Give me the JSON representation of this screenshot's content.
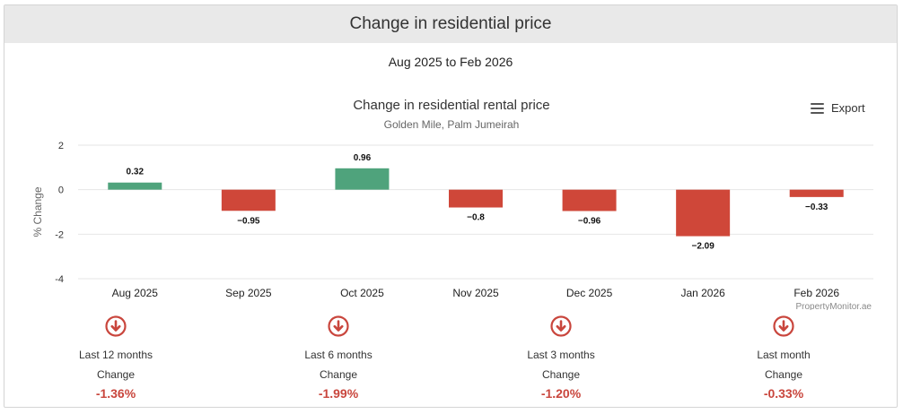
{
  "header": {
    "title": "Change in residential price"
  },
  "date_range": "Aug 2025 to Feb 2026",
  "export_label": "Export",
  "watermark": "PropertyMonitor.ae",
  "colors": {
    "positive": "#4fa37c",
    "negative": "#cf4739",
    "stat_value": "#c9463d"
  },
  "chart_data": {
    "type": "bar",
    "title": "Change in residential rental price",
    "subtitle": "Golden Mile, Palm Jumeirah",
    "xlabel": "",
    "ylabel": "% Change",
    "ylim": [
      -4,
      2
    ],
    "yticks": [
      2,
      0,
      -2,
      -4
    ],
    "categories": [
      "Aug 2025",
      "Sep 2025",
      "Oct 2025",
      "Nov 2025",
      "Dec 2025",
      "Jan 2026",
      "Feb 2026"
    ],
    "values": [
      0.32,
      -0.95,
      0.96,
      -0.8,
      -0.96,
      -2.09,
      -0.33
    ],
    "value_labels": [
      "0.32",
      "−0.95",
      "0.96",
      "−0.8",
      "−0.96",
      "−2.09",
      "−0.33"
    ]
  },
  "stats": [
    {
      "period": "Last 12 months",
      "label": "Change",
      "value": "-1.36%"
    },
    {
      "period": "Last 6 months",
      "label": "Change",
      "value": "-1.99%"
    },
    {
      "period": "Last 3 months",
      "label": "Change",
      "value": "-1.20%"
    },
    {
      "period": "Last month",
      "label": "Change",
      "value": "-0.33%"
    }
  ]
}
